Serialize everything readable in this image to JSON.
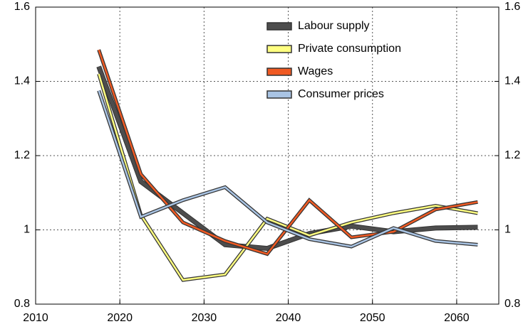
{
  "chart_data": {
    "type": "line",
    "x": [
      2017.5,
      2022.5,
      2027.5,
      2032.5,
      2037.5,
      2042.5,
      2047.5,
      2052.5,
      2057.5,
      2062.5
    ],
    "series": [
      {
        "name": "Labour supply",
        "color": "#4d4d4d",
        "values": [
          1.44,
          1.13,
          1.045,
          0.96,
          0.95,
          0.99,
          1.01,
          0.995,
          1.005,
          1.007
        ]
      },
      {
        "name": "Private consumption",
        "color": "#ffff80",
        "values": [
          1.42,
          1.04,
          0.865,
          0.88,
          1.03,
          0.985,
          1.02,
          1.045,
          1.065,
          1.045
        ]
      },
      {
        "name": "Wages",
        "color": "#f05a23",
        "values": [
          1.485,
          1.15,
          1.02,
          0.97,
          0.935,
          1.08,
          0.98,
          0.995,
          1.055,
          1.075
        ]
      },
      {
        "name": "Consumer prices",
        "color": "#a9c4e4",
        "values": [
          1.375,
          1.035,
          1.08,
          1.115,
          1.02,
          0.975,
          0.955,
          1.005,
          0.97,
          0.96
        ]
      }
    ],
    "xlim": [
      2010,
      2065
    ],
    "xticks": [
      2010,
      2020,
      2030,
      2040,
      2050,
      2060
    ],
    "ylim": [
      0.8,
      1.6
    ],
    "yticks": [
      0.8,
      1,
      1.2,
      1.4,
      1.6
    ],
    "grid": true,
    "legend": "top-right"
  }
}
